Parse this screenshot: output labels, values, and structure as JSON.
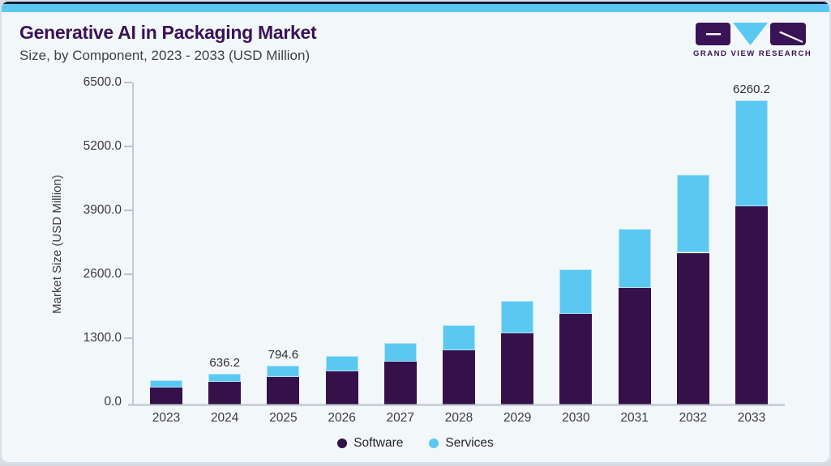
{
  "header": {
    "title": "Generative AI in Packaging Market",
    "subtitle": "Size, by Component, 2023 - 2033 (USD Million)"
  },
  "logo": {
    "text": "GRAND VIEW RESEARCH",
    "purple": "#3a1356",
    "blue": "#5bc8f2"
  },
  "colors": {
    "card_background": "#f2f7fa",
    "top_strip_blue": "#5bc8f2",
    "top_line_navy": "#111c33",
    "software_purple": "#351049",
    "services_blue": "#5bc8f2",
    "axis_text": "#3b3b43",
    "title_purple": "#3a1356"
  },
  "chart_data": {
    "type": "bar",
    "stacked": true,
    "title": "Generative AI in Packaging Market Size, by Component, 2023 - 2033 (USD Million)",
    "xlabel": "",
    "ylabel": "Market Size (USD Million)",
    "ylim": [
      0,
      6500
    ],
    "ytick_values": [
      0,
      1300,
      2600,
      3900,
      5200,
      6500
    ],
    "ytick_labels": [
      "0.0",
      "1300.0",
      "2600.0",
      "3900.0",
      "5200.0",
      "6500.0"
    ],
    "grid": false,
    "legend_position": "bottom",
    "categories": [
      "2023",
      "2024",
      "2025",
      "2026",
      "2027",
      "2028",
      "2029",
      "2030",
      "2031",
      "2032",
      "2033"
    ],
    "series": [
      {
        "name": "Software",
        "color": "#351049",
        "values": [
          348,
          460,
          570,
          690,
          875,
          1118,
          1457,
          1862,
          2395,
          3120,
          4082
        ]
      },
      {
        "name": "Services",
        "color": "#5bc8f2",
        "values": [
          156,
          176.2,
          224.6,
          305,
          392,
          510,
          672,
          910,
          1208,
          1600,
          2178.2
        ]
      }
    ],
    "total_labels": [
      null,
      "636.2",
      "794.6",
      null,
      null,
      null,
      null,
      null,
      null,
      null,
      "6260.2"
    ]
  }
}
